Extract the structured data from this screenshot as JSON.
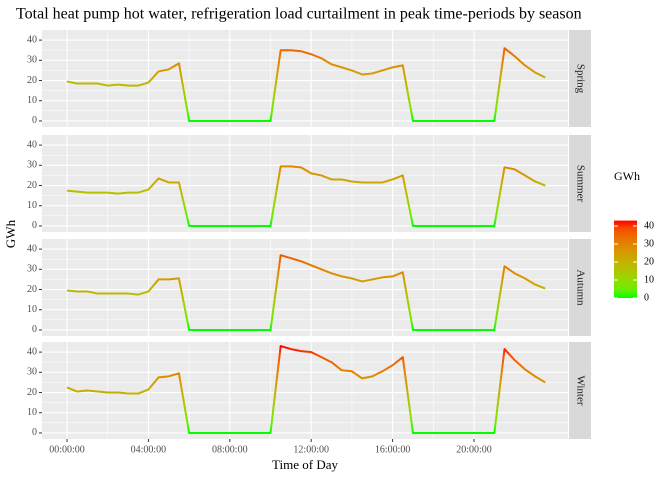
{
  "chart_data": {
    "type": "line",
    "title": "Total heat pump hot water, refrigeration load curtailment in peak time-periods by season",
    "x_label": "Time of Day",
    "y_label": "GWh",
    "x": [
      0,
      0.5,
      1,
      1.5,
      2,
      2.5,
      3,
      3.5,
      4,
      4.5,
      5,
      5.5,
      6,
      6.5,
      7,
      7.5,
      8,
      8.5,
      9,
      9.5,
      10,
      10.5,
      11,
      11.5,
      12,
      12.5,
      13,
      13.5,
      14,
      14.5,
      15,
      15.5,
      16,
      16.5,
      17,
      17.5,
      18,
      18.5,
      19,
      19.5,
      20,
      20.5,
      21,
      21.5,
      22,
      22.5,
      23,
      23.5
    ],
    "xlim": [
      -1.23,
      24.62
    ],
    "xticks": [
      {
        "value": 0,
        "label": "00:00:00"
      },
      {
        "value": 4,
        "label": "04:00:00"
      },
      {
        "value": 8,
        "label": "08:00:00"
      },
      {
        "value": 12,
        "label": "12:00:00"
      },
      {
        "value": 16,
        "label": "16:00:00"
      },
      {
        "value": 20,
        "label": "20:00:00"
      }
    ],
    "ylim": [
      -3,
      45
    ],
    "yticks": [
      0,
      10,
      20,
      30,
      40
    ],
    "grid": true,
    "color_low": "#00ff00",
    "color_high": "#ff0000",
    "legend_title": "GWh",
    "legend_ticks": [
      0,
      10,
      20,
      30,
      40
    ],
    "series": [
      {
        "name": "Spring",
        "values": [
          19.5,
          18.5,
          18.5,
          18.5,
          17.5,
          18,
          17.5,
          17.5,
          19,
          24.5,
          25.5,
          28.5,
          0,
          0,
          0,
          0,
          0,
          0,
          0,
          0,
          0,
          35,
          35,
          34.5,
          33,
          31,
          28,
          26.5,
          25,
          23,
          23.5,
          25,
          26.5,
          27.5,
          0,
          0,
          0,
          0,
          0,
          0,
          0,
          0,
          0,
          36,
          32,
          27.5,
          24,
          21.5
        ]
      },
      {
        "name": "Summer",
        "values": [
          17.5,
          17,
          16.5,
          16.5,
          16.5,
          16,
          16.5,
          16.5,
          18,
          23.5,
          21.5,
          21.5,
          0,
          0,
          0,
          0,
          0,
          0,
          0,
          0,
          0,
          29.5,
          29.5,
          29,
          26,
          25,
          23,
          23,
          22,
          21.5,
          21.5,
          21.5,
          23,
          25,
          0,
          0,
          0,
          0,
          0,
          0,
          0,
          0,
          0,
          29,
          28,
          25,
          22,
          20
        ]
      },
      {
        "name": "Autumn",
        "values": [
          19.5,
          19,
          19,
          18,
          18,
          18,
          18,
          17.5,
          19,
          25,
          25,
          25.5,
          0,
          0,
          0,
          0,
          0,
          0,
          0,
          0,
          0,
          37,
          35.5,
          34,
          32,
          30,
          28,
          26.5,
          25.5,
          24,
          25,
          26,
          26.5,
          28.5,
          0,
          0,
          0,
          0,
          0,
          0,
          0,
          0,
          0,
          31.5,
          28,
          25.5,
          22.5,
          20.5
        ]
      },
      {
        "name": "Winter",
        "values": [
          22.5,
          20.5,
          21,
          20.5,
          20,
          20,
          19.5,
          19.5,
          21.5,
          27.5,
          28,
          29.5,
          0,
          0,
          0,
          0,
          0,
          0,
          0,
          0,
          0,
          43,
          41.5,
          40.5,
          40,
          37.5,
          35,
          31,
          30.5,
          27,
          28,
          30.5,
          33.5,
          37.5,
          0,
          0,
          0,
          0,
          0,
          0,
          0,
          0,
          0,
          41.5,
          36,
          31.5,
          28,
          25
        ]
      }
    ]
  }
}
